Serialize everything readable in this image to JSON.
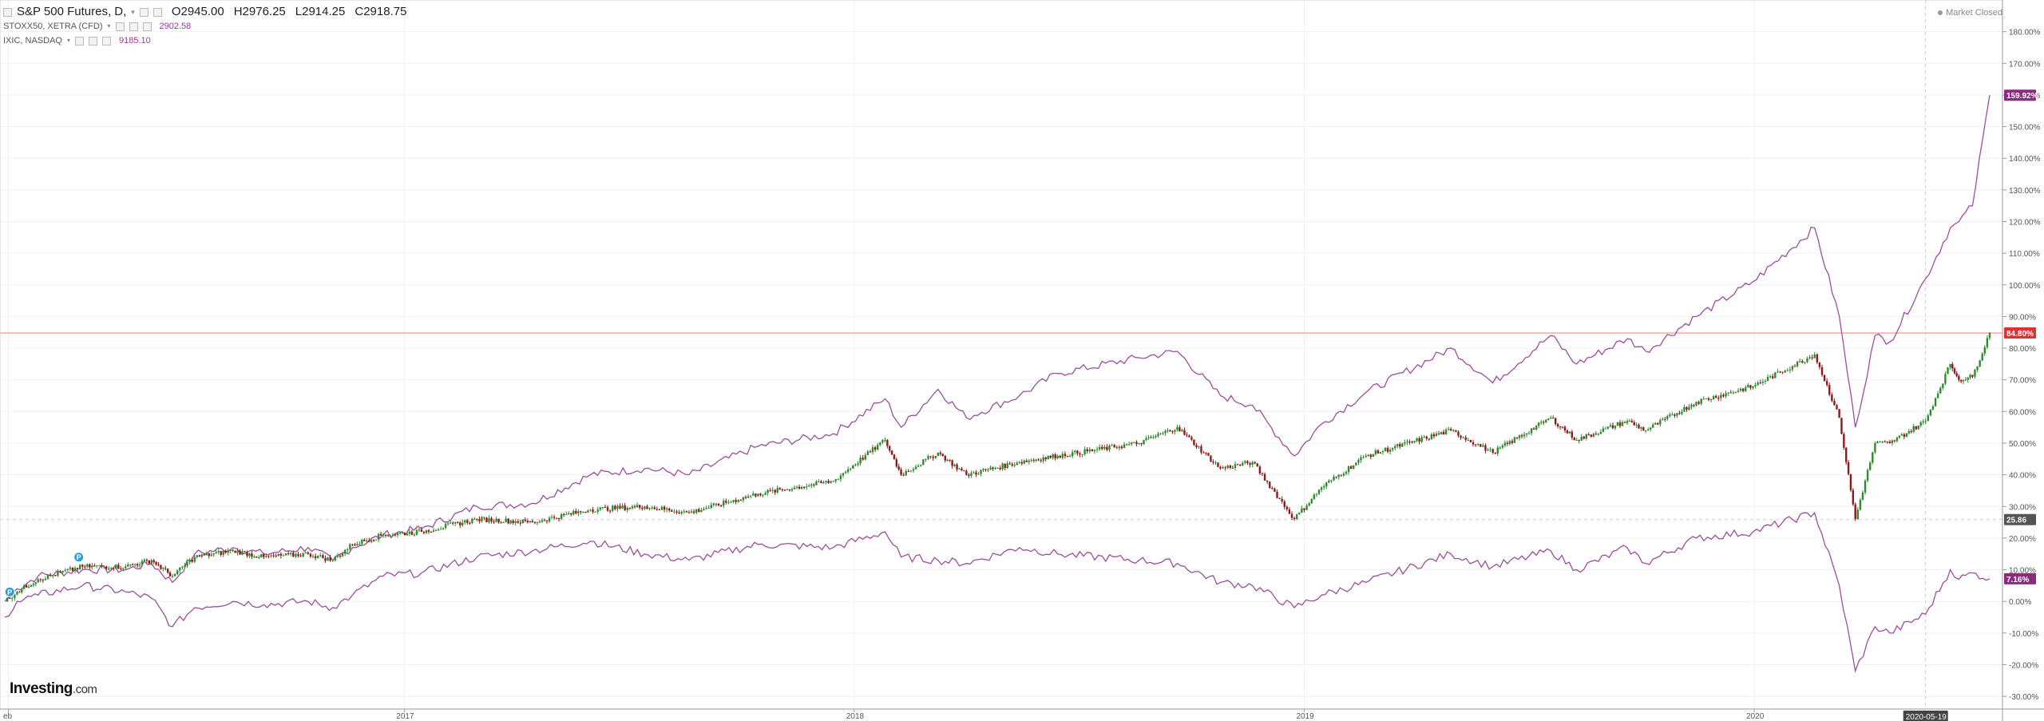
{
  "legend": {
    "main_title": "S&P 500 Futures, D,",
    "open": "O2945.00",
    "high": "H2976.25",
    "low": "L2914.25",
    "close": "C2918.75",
    "series2_name": "STOXX50, XETRA (CFD)",
    "series2_value": "2902.58",
    "series3_name": "IXIC, NASDAQ",
    "series3_value": "9185.10"
  },
  "status": {
    "market_closed": "Market Closed"
  },
  "watermark": {
    "brand": "Investing",
    "suffix": ".com"
  },
  "markers": {
    "event_label": "P"
  },
  "colors": {
    "up": "#2e8b2e",
    "down": "#8b1a1a",
    "compare": "#9b4f9b",
    "hline": "#f28b8b",
    "dashed": "#cfcfcf"
  },
  "chart_data": {
    "type": "line",
    "x_start": "2016-02-12",
    "x_end": "2020-07-10",
    "x_ticks": [
      {
        "label": "eb",
        "date": "2016-02-15"
      },
      {
        "label": "2017",
        "date": "2017-01-01"
      },
      {
        "label": "2018",
        "date": "2018-01-01"
      },
      {
        "label": "2019",
        "date": "2019-01-01"
      },
      {
        "label": "2020",
        "date": "2020-01-01"
      }
    ],
    "crosshair_date_label": "2020-05-19",
    "crosshair_date": "2020-05-19",
    "y_unit": "%",
    "ylim": [
      -34,
      190
    ],
    "y_ticks": [
      -30,
      -20,
      -10,
      0,
      10,
      20,
      30,
      40,
      50,
      60,
      70,
      80,
      90,
      100,
      110,
      120,
      130,
      140,
      150,
      160,
      170,
      180
    ],
    "y_tick_labels": [
      "-30.00%",
      "-20.00%",
      "-10.00%",
      "0.00%",
      "10.00%",
      "20.00%",
      "30.00%",
      "40.00%",
      "50.00%",
      "60.00%",
      "70.00%",
      "80.00%",
      "90.00%",
      "100.00%",
      "110.00%",
      "120.00%",
      "130.00%",
      "140.00%",
      "150.00%",
      "160.00%",
      "170.00%",
      "180.00%"
    ],
    "horizontal_line": {
      "value": 84.8,
      "label": "84.80%"
    },
    "crosshair_value": {
      "value": 25.86,
      "label": "25.86"
    },
    "series": [
      {
        "name": "S&P 500 Futures",
        "style": "candlestick",
        "last_label": "84.80%",
        "points": [
          [
            "2016-02-12",
            0
          ],
          [
            "2016-02-22",
            3
          ],
          [
            "2016-03-10",
            7
          ],
          [
            "2016-04-15",
            11
          ],
          [
            "2016-05-20",
            11
          ],
          [
            "2016-06-10",
            13
          ],
          [
            "2016-06-27",
            8
          ],
          [
            "2016-07-15",
            14
          ],
          [
            "2016-08-15",
            16
          ],
          [
            "2016-09-09",
            14
          ],
          [
            "2016-10-15",
            15
          ],
          [
            "2016-11-04",
            13
          ],
          [
            "2016-11-20",
            18
          ],
          [
            "2016-12-15",
            21
          ],
          [
            "2017-01-15",
            22
          ],
          [
            "2017-03-01",
            26
          ],
          [
            "2017-04-15",
            25
          ],
          [
            "2017-06-01",
            29
          ],
          [
            "2017-07-15",
            30
          ],
          [
            "2017-08-20",
            28
          ],
          [
            "2017-10-15",
            34
          ],
          [
            "2017-12-15",
            38
          ],
          [
            "2018-01-26",
            51
          ],
          [
            "2018-02-08",
            40
          ],
          [
            "2018-03-10",
            47
          ],
          [
            "2018-04-02",
            40
          ],
          [
            "2018-05-15",
            44
          ],
          [
            "2018-06-15",
            46
          ],
          [
            "2018-08-20",
            50
          ],
          [
            "2018-09-20",
            55
          ],
          [
            "2018-10-25",
            42
          ],
          [
            "2018-11-20",
            44
          ],
          [
            "2018-12-24",
            26
          ],
          [
            "2019-01-15",
            36
          ],
          [
            "2019-02-20",
            46
          ],
          [
            "2019-04-30",
            54
          ],
          [
            "2019-06-03",
            47
          ],
          [
            "2019-07-20",
            58
          ],
          [
            "2019-08-10",
            51
          ],
          [
            "2019-09-20",
            57
          ],
          [
            "2019-10-05",
            54
          ],
          [
            "2019-11-15",
            63
          ],
          [
            "2019-12-31",
            68
          ],
          [
            "2020-02-19",
            78
          ],
          [
            "2020-03-10",
            58
          ],
          [
            "2020-03-23",
            26
          ],
          [
            "2020-04-08",
            50
          ],
          [
            "2020-04-20",
            50
          ],
          [
            "2020-05-19",
            57
          ],
          [
            "2020-06-08",
            75
          ],
          [
            "2020-06-15",
            70
          ],
          [
            "2020-06-26",
            71
          ],
          [
            "2020-07-10",
            84.8
          ]
        ]
      },
      {
        "name": "IXIC",
        "style": "line",
        "last_label": "159.92%",
        "points": [
          [
            "2016-02-12",
            0
          ],
          [
            "2016-02-22",
            4
          ],
          [
            "2016-03-10",
            8
          ],
          [
            "2016-04-15",
            10
          ],
          [
            "2016-05-20",
            10
          ],
          [
            "2016-06-10",
            12
          ],
          [
            "2016-06-27",
            6
          ],
          [
            "2016-07-15",
            15
          ],
          [
            "2016-08-15",
            17
          ],
          [
            "2016-09-09",
            15
          ],
          [
            "2016-10-15",
            17
          ],
          [
            "2016-11-04",
            13
          ],
          [
            "2016-11-20",
            17
          ],
          [
            "2016-12-15",
            21
          ],
          [
            "2017-01-15",
            23
          ],
          [
            "2017-03-01",
            30
          ],
          [
            "2017-04-15",
            31
          ],
          [
            "2017-06-01",
            40
          ],
          [
            "2017-07-15",
            42
          ],
          [
            "2017-08-20",
            40
          ],
          [
            "2017-10-15",
            49
          ],
          [
            "2017-12-15",
            53
          ],
          [
            "2018-01-26",
            64
          ],
          [
            "2018-02-08",
            55
          ],
          [
            "2018-03-10",
            67
          ],
          [
            "2018-04-02",
            58
          ],
          [
            "2018-05-15",
            65
          ],
          [
            "2018-06-15",
            72
          ],
          [
            "2018-08-20",
            77
          ],
          [
            "2018-09-20",
            79
          ],
          [
            "2018-10-25",
            65
          ],
          [
            "2018-11-20",
            62
          ],
          [
            "2018-12-24",
            46
          ],
          [
            "2019-01-15",
            56
          ],
          [
            "2019-02-20",
            66
          ],
          [
            "2019-04-30",
            80
          ],
          [
            "2019-06-03",
            69
          ],
          [
            "2019-07-20",
            84
          ],
          [
            "2019-08-10",
            75
          ],
          [
            "2019-09-20",
            83
          ],
          [
            "2019-10-05",
            79
          ],
          [
            "2019-11-15",
            90
          ],
          [
            "2019-12-31",
            101
          ],
          [
            "2020-02-19",
            118
          ],
          [
            "2020-03-10",
            90
          ],
          [
            "2020-03-23",
            55
          ],
          [
            "2020-04-08",
            84
          ],
          [
            "2020-04-20",
            82
          ],
          [
            "2020-05-19",
            102
          ],
          [
            "2020-06-08",
            118
          ],
          [
            "2020-06-15",
            120
          ],
          [
            "2020-06-26",
            125
          ],
          [
            "2020-07-10",
            159.92
          ]
        ]
      },
      {
        "name": "STOXX50",
        "style": "line",
        "last_label": "7.16%",
        "points": [
          [
            "2016-02-12",
            -5
          ],
          [
            "2016-02-22",
            0
          ],
          [
            "2016-03-10",
            2
          ],
          [
            "2016-04-15",
            5
          ],
          [
            "2016-05-20",
            3
          ],
          [
            "2016-06-10",
            1
          ],
          [
            "2016-06-27",
            -8
          ],
          [
            "2016-07-15",
            -2
          ],
          [
            "2016-08-15",
            0
          ],
          [
            "2016-09-09",
            -1
          ],
          [
            "2016-10-15",
            0
          ],
          [
            "2016-11-04",
            -2
          ],
          [
            "2016-11-20",
            2
          ],
          [
            "2016-12-15",
            8
          ],
          [
            "2017-01-15",
            9
          ],
          [
            "2017-03-01",
            14
          ],
          [
            "2017-04-15",
            16
          ],
          [
            "2017-06-01",
            19
          ],
          [
            "2017-07-15",
            15
          ],
          [
            "2017-08-20",
            13
          ],
          [
            "2017-10-15",
            18
          ],
          [
            "2017-12-15",
            17
          ],
          [
            "2018-01-26",
            22
          ],
          [
            "2018-02-08",
            14
          ],
          [
            "2018-03-10",
            13
          ],
          [
            "2018-04-02",
            12
          ],
          [
            "2018-05-15",
            17
          ],
          [
            "2018-06-15",
            15
          ],
          [
            "2018-08-20",
            13
          ],
          [
            "2018-09-20",
            12
          ],
          [
            "2018-10-25",
            6
          ],
          [
            "2018-11-20",
            5
          ],
          [
            "2018-12-24",
            -2
          ],
          [
            "2019-01-15",
            2
          ],
          [
            "2019-02-20",
            6
          ],
          [
            "2019-04-30",
            15
          ],
          [
            "2019-06-03",
            11
          ],
          [
            "2019-07-20",
            16
          ],
          [
            "2019-08-10",
            10
          ],
          [
            "2019-09-20",
            17
          ],
          [
            "2019-10-05",
            12
          ],
          [
            "2019-11-15",
            20
          ],
          [
            "2019-12-31",
            22
          ],
          [
            "2020-02-19",
            28
          ],
          [
            "2020-03-10",
            5
          ],
          [
            "2020-03-23",
            -22
          ],
          [
            "2020-04-08",
            -8
          ],
          [
            "2020-04-20",
            -10
          ],
          [
            "2020-05-19",
            -4
          ],
          [
            "2020-06-08",
            10
          ],
          [
            "2020-06-15",
            7
          ],
          [
            "2020-06-26",
            9
          ],
          [
            "2020-07-10",
            7.16
          ]
        ]
      }
    ]
  }
}
